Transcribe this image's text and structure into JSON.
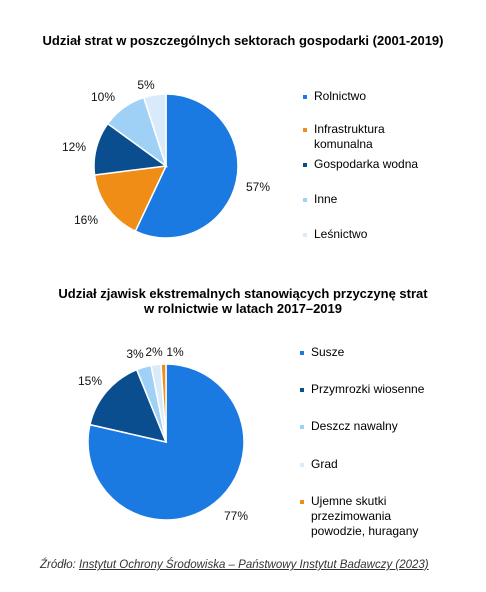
{
  "chart_data": [
    {
      "type": "pie",
      "title": "Udział strat w poszczególnych sektorach gospodarki (2001-2019)",
      "categories": [
        "Rolnictwo",
        "Infrastruktura komunalna",
        "Gospodarka wodna",
        "Inne",
        "Leśnictwo"
      ],
      "values": [
        57,
        16,
        12,
        10,
        5
      ],
      "value_labels": [
        "57%",
        "16%",
        "12%",
        "10%",
        "5%"
      ],
      "colors": [
        "#1a7ae2",
        "#ef8d16",
        "#0b4e8f",
        "#9fd0f5",
        "#d9ebfa"
      ],
      "legend_position": "right"
    },
    {
      "type": "pie",
      "title": "Udział zjawisk ekstremalnych stanowiących przyczynę strat w rolnictwie w latach 2017–2019",
      "categories": [
        "Susze",
        "Przymrozki wiosenne",
        "Deszcz nawalny",
        "Grad",
        "Ujemne skutki przezimowania powodzie, huragany"
      ],
      "values": [
        77,
        15,
        3,
        2,
        1
      ],
      "value_labels": [
        "77%",
        "15%",
        "3%",
        "2%",
        "1%"
      ],
      "colors": [
        "#1a7ae2",
        "#0b4e8f",
        "#9fd0f5",
        "#d9ebfa",
        "#ef8d16"
      ],
      "legend_position": "right"
    }
  ],
  "titles": {
    "chart1_line1": "Udział strat w poszczególnych sektorach gospodarki (2001-2019)",
    "chart2_line1": "Udział zjawisk ekstremalnych stanowiących przyczynę strat",
    "chart2_line2": "w rolnictwie w latach 2017–2019"
  },
  "legend1": [
    "Rolnictwo",
    "Infrastruktura",
    "komunalna",
    "Gospodarka wodna",
    "Inne",
    "Leśnictwo"
  ],
  "legend2": [
    "Susze",
    "Przymrozki wiosenne",
    "Deszcz nawalny",
    "Grad",
    "Ujemne skutki",
    "przezimowania",
    "powodzie, huragany"
  ],
  "source": {
    "prefix": "Źródło: ",
    "link": "Instytut Ochrony Środowiska – Państwowy Instytut Badawczy (2023)"
  }
}
